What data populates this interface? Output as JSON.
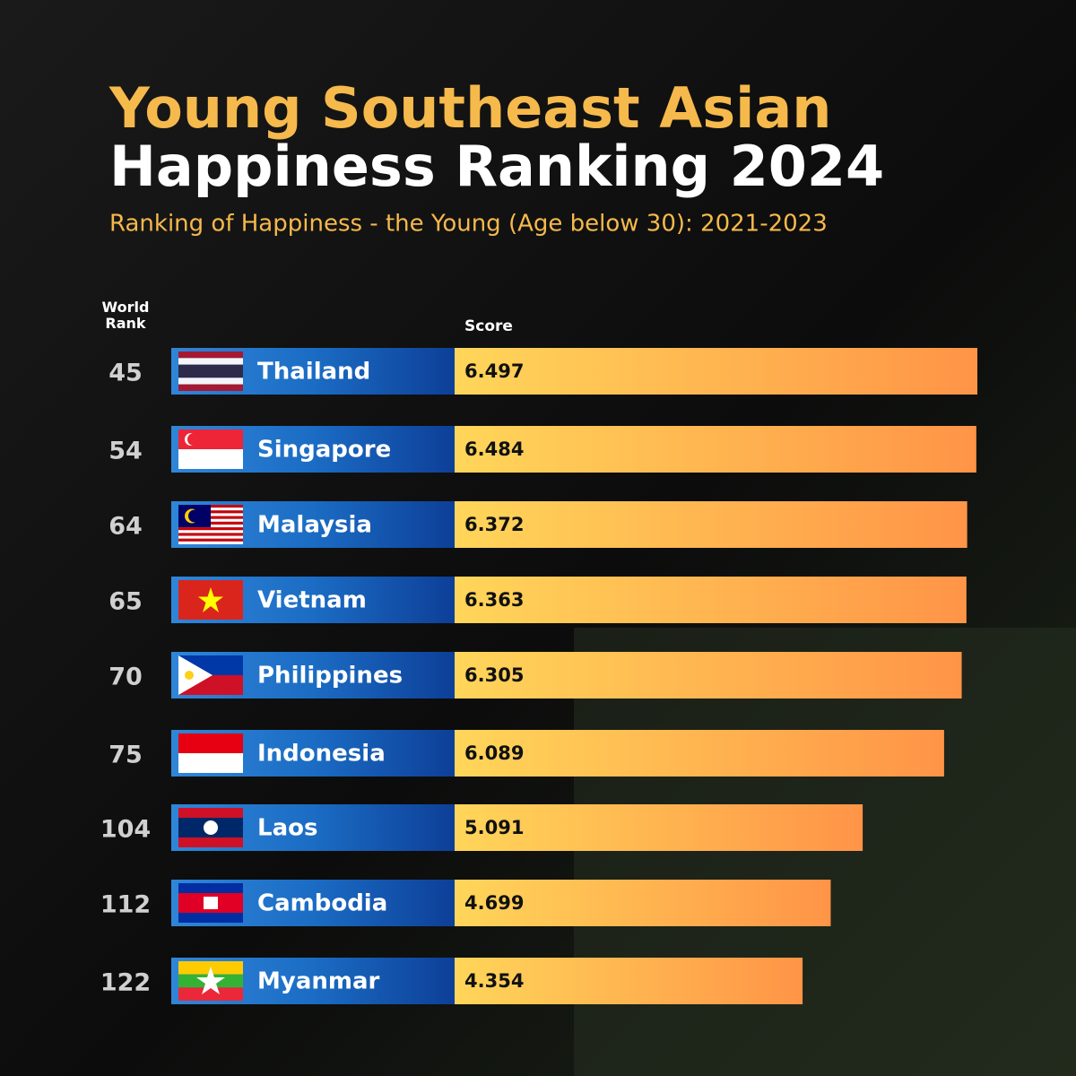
{
  "chart_data": {
    "type": "bar",
    "title_lines": [
      "Young Southeast Asian",
      "Happiness Ranking 2024"
    ],
    "subtitle": "Ranking of Happiness - the Young (Age below 30): 2021-2023",
    "rank_header": "World Rank",
    "value_header": "Score",
    "categories": [
      "Thailand",
      "Singapore",
      "Malaysia",
      "Vietnam",
      "Philippines",
      "Indonesia",
      "Laos",
      "Cambodia",
      "Myanmar"
    ],
    "ranks": [
      45,
      54,
      64,
      65,
      70,
      75,
      104,
      112,
      122
    ],
    "values": [
      6.497,
      6.484,
      6.372,
      6.363,
      6.305,
      6.089,
      5.091,
      4.699,
      4.354
    ],
    "color": "#ffb04f"
  }
}
